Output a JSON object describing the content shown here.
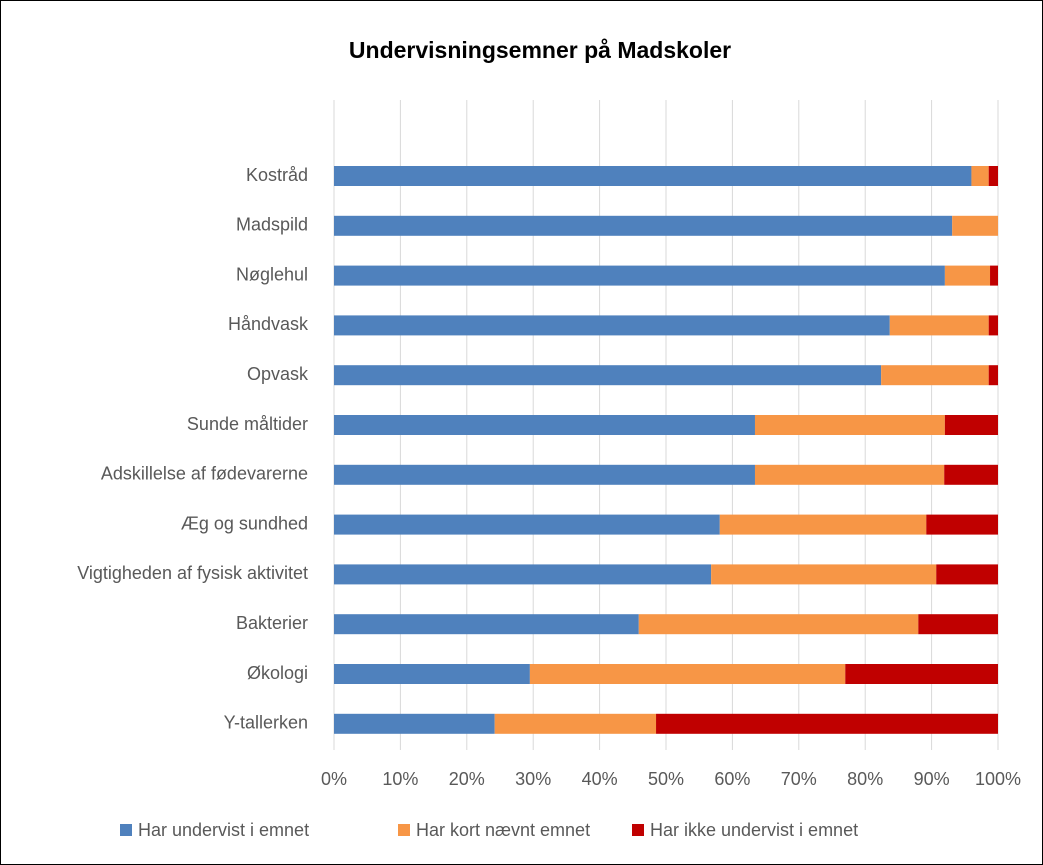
{
  "chart_data": {
    "type": "stacked_barh",
    "title": "Undervisningsemner på Madskoler",
    "categories": [
      "Kostråd",
      "Madspild",
      "Nøglehul",
      "Håndvask",
      "Opvask",
      "Sunde måltider",
      "Adskillelse af fødevarerne",
      "Æg og sundhed",
      "Vigtigheden af fysisk aktivitet",
      "Bakterier",
      "Økologi",
      "Y-tallerken"
    ],
    "series": [
      {
        "name": "Har undervist i emnet",
        "color": "#4f81bd",
        "values": [
          96.0,
          93.1,
          92.0,
          83.7,
          82.4,
          63.4,
          63.4,
          58.1,
          56.8,
          45.9,
          29.5,
          24.2
        ]
      },
      {
        "name": "Har kort nævnt emnet",
        "color": "#f79646",
        "values": [
          2.6,
          6.9,
          6.8,
          14.9,
          16.2,
          28.6,
          28.5,
          31.1,
          33.9,
          42.1,
          47.5,
          24.3
        ]
      },
      {
        "name": "Har ikke undervist i emnet",
        "color": "#c00000",
        "values": [
          1.4,
          0,
          1.2,
          1.4,
          1.4,
          8.0,
          8.1,
          10.8,
          9.3,
          12.0,
          23.0,
          51.5
        ]
      }
    ],
    "xlim": [
      0,
      100
    ],
    "xticks": [
      {
        "value": 0,
        "label": "0%"
      },
      {
        "value": 10,
        "label": "10%"
      },
      {
        "value": 20,
        "label": "20%"
      },
      {
        "value": 30,
        "label": "30%"
      },
      {
        "value": 40,
        "label": "40%"
      },
      {
        "value": 50,
        "label": "50%"
      },
      {
        "value": 60,
        "label": "60%"
      },
      {
        "value": 70,
        "label": "70%"
      },
      {
        "value": 80,
        "label": "80%"
      },
      {
        "value": 90,
        "label": "90%"
      },
      {
        "value": 100,
        "label": "100%"
      }
    ],
    "grid": true,
    "legend": "bottom"
  }
}
